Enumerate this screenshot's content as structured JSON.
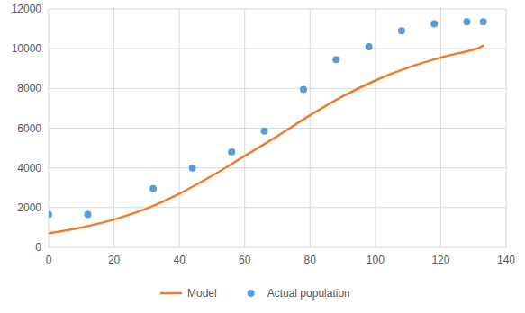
{
  "chart_data": {
    "type": "scatter",
    "series": [
      {
        "name": "Model",
        "type": "line",
        "color": "#ed7d31",
        "line_style": "solid",
        "x": [
          0,
          10,
          20,
          30,
          40,
          50,
          60,
          70,
          80,
          90,
          100,
          110,
          120,
          130,
          133
        ],
        "values": [
          700,
          1000,
          1400,
          1950,
          2700,
          3600,
          4600,
          5600,
          6650,
          7600,
          8400,
          9050,
          9550,
          9950,
          10150
        ]
      },
      {
        "name": "Actual population",
        "type": "scatter",
        "color": "#5b9bd5",
        "marker": "circle",
        "x": [
          0,
          12,
          32,
          44,
          56,
          66,
          78,
          88,
          98,
          108,
          118,
          128,
          133
        ],
        "values": [
          1650,
          1650,
          2950,
          4000,
          4800,
          5850,
          7950,
          9450,
          10100,
          10900,
          11250,
          11350,
          11350
        ]
      }
    ],
    "xlim": [
      0,
      140
    ],
    "xticks": [
      0,
      20,
      40,
      60,
      80,
      100,
      120,
      140
    ],
    "ylim": [
      0,
      12000
    ],
    "yticks": [
      0,
      2000,
      4000,
      6000,
      8000,
      10000,
      12000
    ],
    "grid": true,
    "legend": "bottom"
  }
}
